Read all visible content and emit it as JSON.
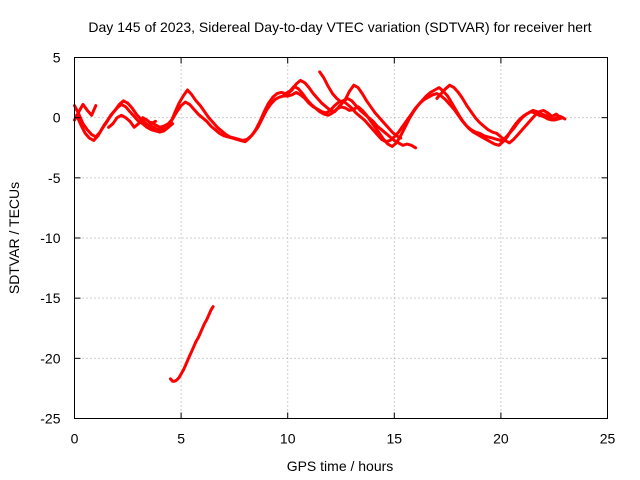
{
  "chart_data": {
    "type": "line",
    "title": "Day 145 of 2023, Sidereal Day-to-day VTEC variation (SDTVAR) for receiver hert",
    "xlabel": "GPS time / hours",
    "ylabel": "SDTVAR / TECUs",
    "xlim": [
      0,
      25
    ],
    "ylim": [
      -25,
      5
    ],
    "x_ticks": [
      0,
      5,
      10,
      15,
      20,
      25
    ],
    "x_tick_labels": [
      "0",
      "5",
      "10",
      "15",
      "20",
      "25"
    ],
    "y_ticks": [
      5,
      0,
      -5,
      -10,
      -15,
      -20,
      -25
    ],
    "y_tick_labels": [
      "5",
      "0",
      "-5",
      "-10",
      "-15",
      "-20",
      "-25"
    ],
    "grid": true,
    "legend": "none",
    "colors": {
      "series": "#ff0000",
      "grid": "#a0a0a0",
      "axis": "#000000",
      "background": "#ffffff"
    },
    "series": [
      {
        "name": "track-1",
        "x": [
          0.0,
          0.2,
          0.4,
          0.6,
          0.8,
          1.0,
          1.2,
          1.4,
          1.6,
          1.8,
          2.0,
          2.2,
          2.4,
          2.6,
          2.8,
          3.0,
          3.2,
          3.4,
          3.6,
          3.8,
          4.0,
          4.2,
          4.4,
          4.6
        ],
        "y": [
          1.0,
          0.3,
          -0.5,
          -1.0,
          -1.4,
          -1.6,
          -1.2,
          -0.6,
          -0.1,
          0.4,
          0.8,
          1.1,
          0.9,
          0.5,
          0.1,
          -0.3,
          -0.5,
          -0.8,
          -1.0,
          -1.1,
          -1.2,
          -1.1,
          -0.8,
          -0.5
        ]
      },
      {
        "name": "track-2",
        "x": [
          0.0,
          0.2,
          0.4,
          0.6,
          0.8,
          1.0
        ],
        "y": [
          -0.2,
          0.5,
          1.1,
          0.6,
          0.2,
          1.0
        ]
      },
      {
        "name": "track-3",
        "x": [
          0.1,
          0.3,
          0.5,
          0.7,
          0.9,
          1.1,
          1.3,
          1.5,
          1.7,
          1.9,
          2.1,
          2.3,
          2.5,
          2.7,
          2.9,
          3.1,
          3.3,
          3.5,
          3.7,
          3.9,
          4.1,
          4.3
        ],
        "y": [
          0.2,
          -0.6,
          -1.3,
          -1.7,
          -1.9,
          -1.5,
          -0.9,
          -0.4,
          0.2,
          0.6,
          1.1,
          1.4,
          1.2,
          0.8,
          0.3,
          -0.1,
          -0.4,
          -0.7,
          -0.9,
          -1.0,
          -1.0,
          -0.9
        ]
      },
      {
        "name": "track-4",
        "x": [
          1.6,
          1.8,
          2.0,
          2.2,
          2.4,
          2.6,
          2.8,
          3.0,
          3.2,
          3.4,
          3.6,
          3.8
        ],
        "y": [
          -0.8,
          -0.5,
          0.0,
          0.2,
          0.0,
          -0.3,
          -0.8,
          -0.5,
          0.0,
          -0.2,
          -0.5,
          -0.3
        ]
      },
      {
        "name": "track-5",
        "x": [
          3.5,
          3.7,
          3.9,
          4.1,
          4.3,
          4.5,
          4.7,
          4.9,
          5.1,
          5.3,
          5.5,
          5.7,
          5.9,
          6.1,
          6.3,
          6.5,
          6.7,
          6.9,
          7.1,
          7.3,
          7.5,
          7.7,
          7.9,
          8.1,
          8.3,
          8.5,
          8.7,
          8.9,
          9.1,
          9.3,
          9.5,
          9.7,
          9.9,
          10.1,
          10.3,
          10.5,
          10.7,
          10.9,
          11.1,
          11.3,
          11.5,
          11.7,
          11.9,
          12.1,
          12.3,
          12.5,
          12.7,
          12.9,
          13.1,
          13.3,
          13.5,
          13.7,
          13.9,
          14.1,
          14.3,
          14.5,
          14.7,
          14.9,
          15.1,
          15.3,
          15.5,
          15.7,
          15.9,
          16.1,
          16.3,
          16.5,
          16.7,
          16.9,
          17.1,
          17.3,
          17.5,
          17.7,
          17.9,
          18.1,
          18.3,
          18.5,
          18.7,
          18.9,
          19.1,
          19.3,
          19.5,
          19.7,
          19.9,
          20.1,
          20.3,
          20.5,
          20.7,
          20.9,
          21.1,
          21.3,
          21.5,
          21.7,
          21.9,
          22.1,
          22.3,
          22.5,
          22.7,
          22.9
        ],
        "y": [
          -0.6,
          -0.8,
          -1.0,
          -1.0,
          -0.9,
          -0.5,
          0.4,
          1.2,
          1.8,
          2.3,
          1.9,
          1.4,
          1.0,
          0.5,
          0.0,
          -0.4,
          -0.8,
          -1.1,
          -1.4,
          -1.6,
          -1.7,
          -1.8,
          -1.9,
          -1.8,
          -1.5,
          -1.0,
          -0.3,
          0.5,
          1.2,
          1.7,
          2.0,
          2.1,
          2.0,
          2.2,
          2.6,
          2.4,
          2.0,
          1.5,
          1.1,
          0.8,
          0.5,
          0.3,
          0.2,
          0.4,
          0.7,
          0.9,
          0.8,
          0.6,
          0.7,
          0.9,
          0.6,
          0.2,
          -0.3,
          -0.8,
          -1.3,
          -1.8,
          -2.2,
          -2.4,
          -2.1,
          -1.5,
          -0.8,
          -0.1,
          0.5,
          1.0,
          1.4,
          1.8,
          2.1,
          2.3,
          2.5,
          2.2,
          1.8,
          1.2,
          0.6,
          0.0,
          -0.5,
          -0.9,
          -1.2,
          -1.4,
          -1.6,
          -1.8,
          -2.0,
          -2.2,
          -2.3,
          -2.0,
          -1.6,
          -1.0,
          -0.5,
          -0.1,
          0.2,
          0.4,
          0.6,
          0.5,
          0.3,
          0.2,
          0.0,
          -0.2,
          -0.1,
          0.0
        ]
      },
      {
        "name": "track-6",
        "x": [
          3.6,
          3.8,
          4.0,
          4.2,
          4.4,
          4.6,
          4.8,
          5.0,
          5.2,
          5.4,
          5.6,
          5.8,
          6.0,
          6.2,
          6.4,
          6.6,
          6.8,
          7.0,
          7.2,
          7.4,
          7.6,
          7.8,
          8.0,
          8.2,
          8.4,
          8.6,
          8.8,
          9.0,
          9.2,
          9.4,
          9.6,
          9.8,
          10.0,
          10.2,
          10.4,
          10.6,
          10.8,
          11.0,
          11.2,
          11.4,
          11.6,
          11.8,
          12.0,
          12.2,
          12.4,
          12.6,
          12.8,
          13.0,
          13.2,
          13.4,
          13.6,
          13.8,
          14.0,
          14.2,
          14.4,
          14.6,
          14.8,
          15.0,
          15.2,
          15.4,
          15.6,
          15.8,
          16.0,
          16.2,
          16.4,
          16.6,
          16.8,
          17.0,
          17.2,
          17.4,
          17.6,
          17.8,
          18.0,
          18.2,
          18.4,
          18.6,
          18.8,
          19.0,
          19.2,
          19.4,
          19.6,
          19.8,
          20.0,
          20.2,
          20.4,
          20.6,
          20.8,
          21.0,
          21.2,
          21.4,
          21.6,
          21.8,
          22.0,
          22.2,
          22.4,
          22.6,
          22.8,
          23.0
        ],
        "y": [
          -0.4,
          -0.6,
          -0.8,
          -0.7,
          -0.5,
          -0.1,
          0.5,
          1.0,
          1.3,
          1.1,
          0.7,
          0.3,
          0.0,
          -0.3,
          -0.7,
          -1.0,
          -1.3,
          -1.5,
          -1.6,
          -1.7,
          -1.8,
          -1.9,
          -2.0,
          -1.7,
          -1.3,
          -0.8,
          -0.1,
          0.6,
          1.1,
          1.5,
          1.7,
          1.8,
          1.8,
          1.9,
          2.1,
          1.9,
          1.6,
          1.2,
          0.9,
          0.7,
          0.5,
          0.4,
          0.6,
          1.0,
          1.3,
          1.4,
          1.1,
          0.8,
          0.4,
          0.1,
          -0.2,
          -0.6,
          -1.0,
          -1.4,
          -1.8,
          -2.0,
          -1.9,
          -1.6,
          -1.2,
          -0.7,
          -0.2,
          0.3,
          0.8,
          1.2,
          1.5,
          1.7,
          1.9,
          2.0,
          1.8,
          1.5,
          1.1,
          0.7,
          0.2,
          -0.3,
          -0.7,
          -1.0,
          -1.2,
          -1.3,
          -1.5,
          -1.6,
          -1.7,
          -1.8,
          -1.9,
          -1.7,
          -1.3,
          -0.9,
          -0.4,
          0.0,
          0.3,
          0.5,
          0.4,
          0.2,
          0.1,
          -0.1,
          -0.2,
          0.0,
          0.1,
          -0.1
        ]
      },
      {
        "name": "track-7",
        "x": [
          10.0,
          10.2,
          10.4,
          10.6,
          10.8,
          11.0,
          11.2,
          11.4,
          11.6,
          11.8,
          12.0,
          12.2,
          12.4,
          12.6,
          12.8,
          13.0,
          13.2,
          13.4,
          13.6,
          13.8,
          14.0,
          14.2,
          14.4,
          14.6,
          14.8,
          15.0,
          15.2,
          15.4,
          15.6,
          15.8,
          16.0
        ],
        "y": [
          2.0,
          2.3,
          2.8,
          3.1,
          2.9,
          2.5,
          2.0,
          1.6,
          1.2,
          0.9,
          0.6,
          0.5,
          0.9,
          1.3,
          1.6,
          1.4,
          1.0,
          0.6,
          0.3,
          0.0,
          -0.3,
          -0.7,
          -1.0,
          -1.3,
          -1.6,
          -1.9,
          -2.1,
          -2.3,
          -2.2,
          -2.3,
          -2.5
        ]
      },
      {
        "name": "track-8",
        "x": [
          11.5,
          11.7,
          11.9,
          12.1,
          12.3,
          12.5,
          12.7,
          12.9,
          13.1,
          13.3,
          13.5,
          13.7,
          13.9,
          14.1,
          14.3,
          14.5,
          14.7,
          14.9,
          15.1,
          15.3
        ],
        "y": [
          3.8,
          3.3,
          2.6,
          2.0,
          1.6,
          1.3,
          1.5,
          2.2,
          2.7,
          2.5,
          2.0,
          1.4,
          0.9,
          0.4,
          0.0,
          -0.4,
          -0.8,
          -1.2,
          -1.5,
          -1.7
        ]
      },
      {
        "name": "track-9",
        "x": [
          17.0,
          17.2,
          17.4,
          17.6,
          17.8,
          18.0,
          18.2,
          18.4,
          18.6,
          18.8,
          19.0,
          19.2,
          19.4,
          19.6,
          19.8,
          20.0,
          20.2,
          20.4,
          20.6,
          20.8,
          21.0,
          21.2,
          21.4,
          21.6,
          21.8,
          22.0,
          22.2,
          22.4,
          22.6,
          22.8
        ],
        "y": [
          1.6,
          2.0,
          2.4,
          2.7,
          2.5,
          2.1,
          1.6,
          1.0,
          0.5,
          0.0,
          -0.4,
          -0.7,
          -1.0,
          -1.2,
          -1.3,
          -1.6,
          -1.9,
          -2.1,
          -1.8,
          -1.4,
          -1.0,
          -0.6,
          -0.2,
          0.2,
          0.5,
          0.6,
          0.4,
          0.1,
          0.3,
          0.0
        ]
      },
      {
        "name": "track-10",
        "x": [
          4.5,
          4.6,
          4.7,
          4.8,
          4.9,
          5.0,
          5.1,
          5.2,
          5.3,
          5.4,
          5.5,
          5.6,
          5.7,
          5.8,
          5.9,
          6.0,
          6.1,
          6.2,
          6.3,
          6.4,
          6.5
        ],
        "y": [
          -21.7,
          -21.9,
          -21.9,
          -21.8,
          -21.6,
          -21.3,
          -21.0,
          -20.6,
          -20.2,
          -19.8,
          -19.4,
          -19.0,
          -18.6,
          -18.3,
          -17.9,
          -17.5,
          -17.1,
          -16.8,
          -16.4,
          -16.0,
          -15.7
        ]
      }
    ]
  }
}
